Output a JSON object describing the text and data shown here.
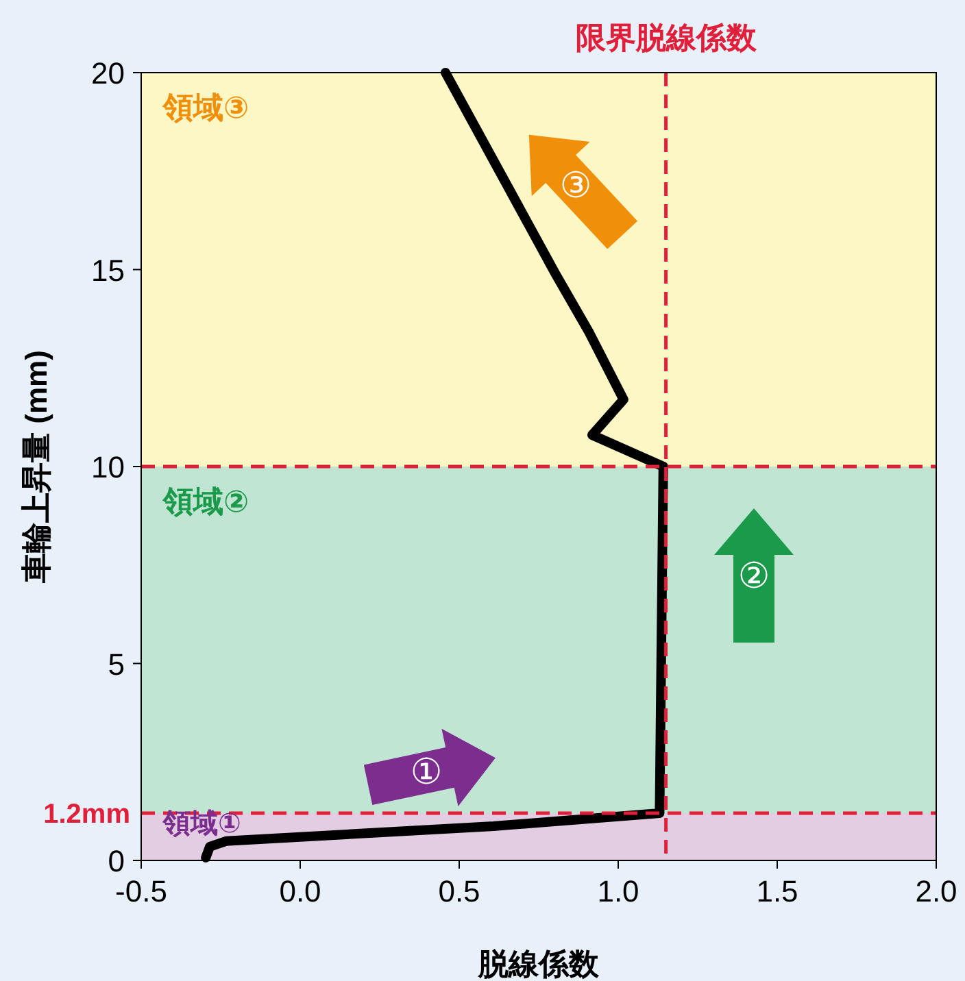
{
  "chart_data": {
    "type": "line",
    "xlabel": "脱線係数",
    "ylabel": "車輪上昇量 (mm)",
    "series": [
      {
        "color": "#000000",
        "x": [
          -0.297,
          -0.284,
          -0.233,
          0.608,
          1.13,
          1.142,
          0.918,
          1.017,
          0.909,
          0.802,
          0.457
        ],
        "values": [
          0.07,
          0.35,
          0.49,
          0.87,
          1.2,
          10.0,
          10.8,
          11.7,
          13.4,
          14.9,
          20
        ]
      }
    ],
    "xlim": [
      -0.5,
      2.0
    ],
    "ylim": [
      0,
      20
    ],
    "xticks": [
      {
        "value": -0.5,
        "label": "-0.5"
      },
      {
        "value": 0,
        "label": "0.0"
      },
      {
        "value": 0.5,
        "label": "0.5"
      },
      {
        "value": 1,
        "label": "1.0"
      },
      {
        "value": 1.5,
        "label": "1.5"
      },
      {
        "value": 2,
        "label": "2.0"
      }
    ],
    "yticks": [
      0,
      5,
      10,
      15,
      20
    ],
    "bands": [
      {
        "axis": "y",
        "from": 0,
        "to": 1.2,
        "label": "領域①",
        "color": "#e2cde3"
      },
      {
        "axis": "y",
        "from": 1.2,
        "to": 10,
        "label": "領域②",
        "color": "#c1e5d3"
      },
      {
        "axis": "y",
        "from": 10,
        "to": 20,
        "label": "領域③",
        "color": "#fdf7c6"
      }
    ],
    "ref_lines": [
      {
        "axis": "x",
        "value": 1.15,
        "label": "限界脱線係数",
        "color": "#e0203a",
        "line_style": "dashed"
      },
      {
        "axis": "y",
        "value": 10,
        "label": null,
        "color": "#e0203a",
        "line_style": "dashed"
      },
      {
        "axis": "y",
        "value": 1.2,
        "label": "1.2mm",
        "color": "#e0203a",
        "line_style": "dashed"
      }
    ],
    "annotations": [
      "①",
      "②",
      "③"
    ],
    "grid": false,
    "marker": "none",
    "line_style": "solid"
  }
}
